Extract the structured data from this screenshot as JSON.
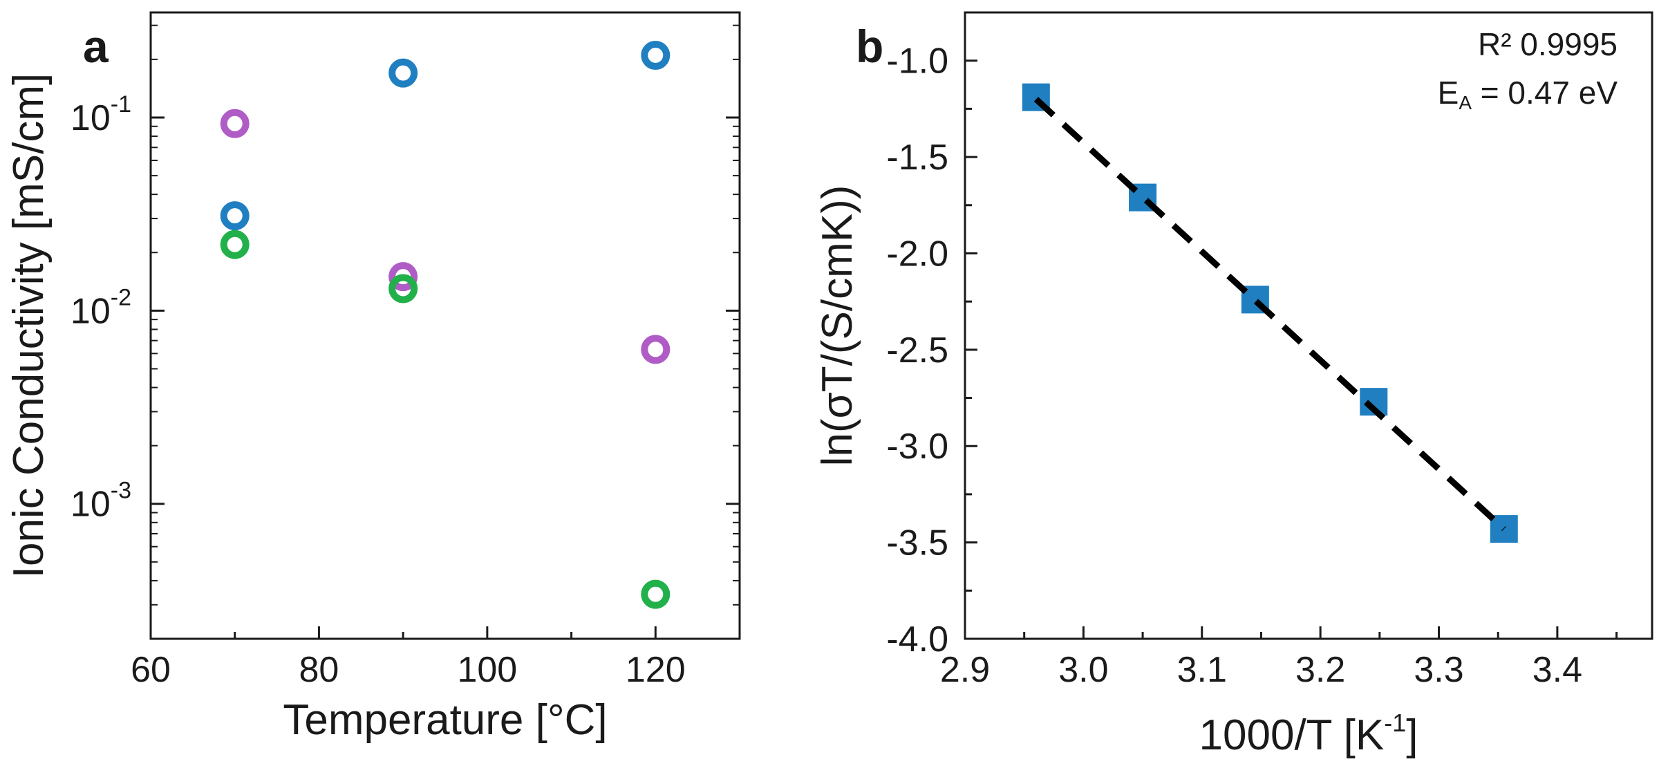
{
  "chart_data": [
    {
      "panel": "a",
      "type": "scatter",
      "xlabel": "Temperature [°C]",
      "ylabel": "Ionic Conductivity [mS/cm]",
      "xlim": [
        60,
        130
      ],
      "ylim": [
        0.0002,
        0.35
      ],
      "yscale": "log",
      "grid": false,
      "xticks": [
        {
          "value": 60,
          "label": "60"
        },
        {
          "value": 80,
          "label": "80"
        },
        {
          "value": 100,
          "label": "100"
        },
        {
          "value": 120,
          "label": "120"
        }
      ],
      "yticks": [
        {
          "value": 0.001,
          "base": "10",
          "exp": "-3"
        },
        {
          "value": 0.01,
          "base": "10",
          "exp": "-2"
        },
        {
          "value": 0.1,
          "base": "10",
          "exp": "-1"
        }
      ],
      "series": [
        {
          "name": "blue",
          "color": "#1f7fc1",
          "marker": "open-circle",
          "points": [
            {
              "x": 70,
              "y": 0.031
            },
            {
              "x": 90,
              "y": 0.17
            },
            {
              "x": 120,
              "y": 0.21
            }
          ]
        },
        {
          "name": "purple",
          "color": "#b05cc6",
          "marker": "open-circle",
          "points": [
            {
              "x": 70,
              "y": 0.093
            },
            {
              "x": 90,
              "y": 0.015
            },
            {
              "x": 120,
              "y": 0.0063
            }
          ]
        },
        {
          "name": "green",
          "color": "#21b04a",
          "marker": "open-circle",
          "points": [
            {
              "x": 70,
              "y": 0.022
            },
            {
              "x": 90,
              "y": 0.013
            },
            {
              "x": 120,
              "y": 0.00034
            }
          ]
        }
      ]
    },
    {
      "panel": "b",
      "type": "scatter",
      "xlabel_main": "1000/T [K",
      "xlabel_sup": "-1",
      "xlabel_end": "]",
      "ylabel": "ln(σT/(S/cmK))",
      "xlim": [
        2.9,
        3.48
      ],
      "ylim": [
        -4.0,
        -0.75
      ],
      "grid": false,
      "xticks": [
        {
          "value": 2.9,
          "label": "2.9"
        },
        {
          "value": 3.0,
          "label": "3.0"
        },
        {
          "value": 3.1,
          "label": "3.1"
        },
        {
          "value": 3.2,
          "label": "3.2"
        },
        {
          "value": 3.3,
          "label": "3.3"
        },
        {
          "value": 3.4,
          "label": "3.4"
        }
      ],
      "yticks": [
        {
          "value": -1.0,
          "label": "-1.0"
        },
        {
          "value": -1.5,
          "label": "-1.5"
        },
        {
          "value": -2.0,
          "label": "-2.0"
        },
        {
          "value": -2.5,
          "label": "-2.5"
        },
        {
          "value": -3.0,
          "label": "-3.0"
        },
        {
          "value": -3.5,
          "label": "-3.5"
        },
        {
          "value": -4.0,
          "label": "-4.0"
        }
      ],
      "series": [
        {
          "name": "data",
          "color": "#1f7fc1",
          "marker": "filled-square",
          "points": [
            {
              "x": 2.96,
              "y": -1.19
            },
            {
              "x": 3.05,
              "y": -1.71
            },
            {
              "x": 3.145,
              "y": -2.24
            },
            {
              "x": 3.245,
              "y": -2.77
            },
            {
              "x": 3.355,
              "y": -3.43
            }
          ]
        }
      ],
      "fit_line": {
        "x1": 2.96,
        "y1": -1.2,
        "x2": 3.355,
        "y2": -3.43,
        "color": "#000000",
        "style": "dashed"
      },
      "annotations": {
        "r_squared": "R² 0.9995",
        "ea_prefix": "E",
        "ea_sub": "A",
        "ea_value": " = 0.47 eV"
      }
    }
  ]
}
